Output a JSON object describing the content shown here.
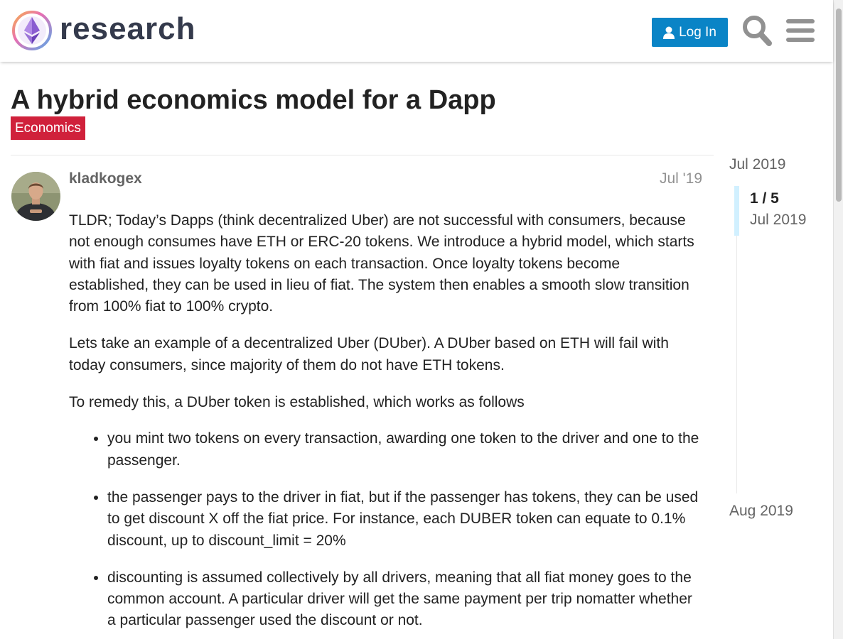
{
  "header": {
    "logo_text": "research",
    "login_label": "Log In",
    "search_icon": "search-icon",
    "menu_icon": "hamburger-menu-icon",
    "accent_color": "#0a84c6"
  },
  "topic": {
    "title": "A hybrid economics model for a Dapp",
    "category": "Economics",
    "category_color": "#d0213b"
  },
  "post": {
    "author": "kladkogex",
    "date": "Jul '19",
    "paragraphs": [
      "TLDR; Today’s Dapps (think decentralized Uber) are not successful with consumers, because not enough consumes have ETH or ERC-20 tokens. We introduce a hybrid model, which starts with fiat and issues loyalty tokens on each transaction. Once loyalty tokens become established, they can be used in lieu of fiat. The system then enables a smooth slow transition from 100% fiat to 100% crypto.",
      "Lets take an example of a decentralized Uber (DUber). A DUber based on ETH will fail with today consumers, since majority of them do not have ETH tokens.",
      "To remedy this, a DUber token is established, which works as follows"
    ],
    "bullets": [
      "you mint two tokens on every transaction, awarding one token to the driver and one to the passenger.",
      "the passenger pays to the driver in fiat, but if the passenger has tokens, they can be used to get discount X off the fiat price. For instance, each DUBER token can equate to 0.1% discount, up to discount_limit = 20%",
      "discounting is assumed collectively by all drivers, meaning that all fiat money goes to the common account. A particular driver will get the same payment per trip nomatter whether a particular passenger used the discount or not."
    ]
  },
  "timeline": {
    "start_date": "Jul 2019",
    "position": "1 / 5",
    "current_date": "Jul 2019",
    "end_date": "Aug 2019"
  }
}
